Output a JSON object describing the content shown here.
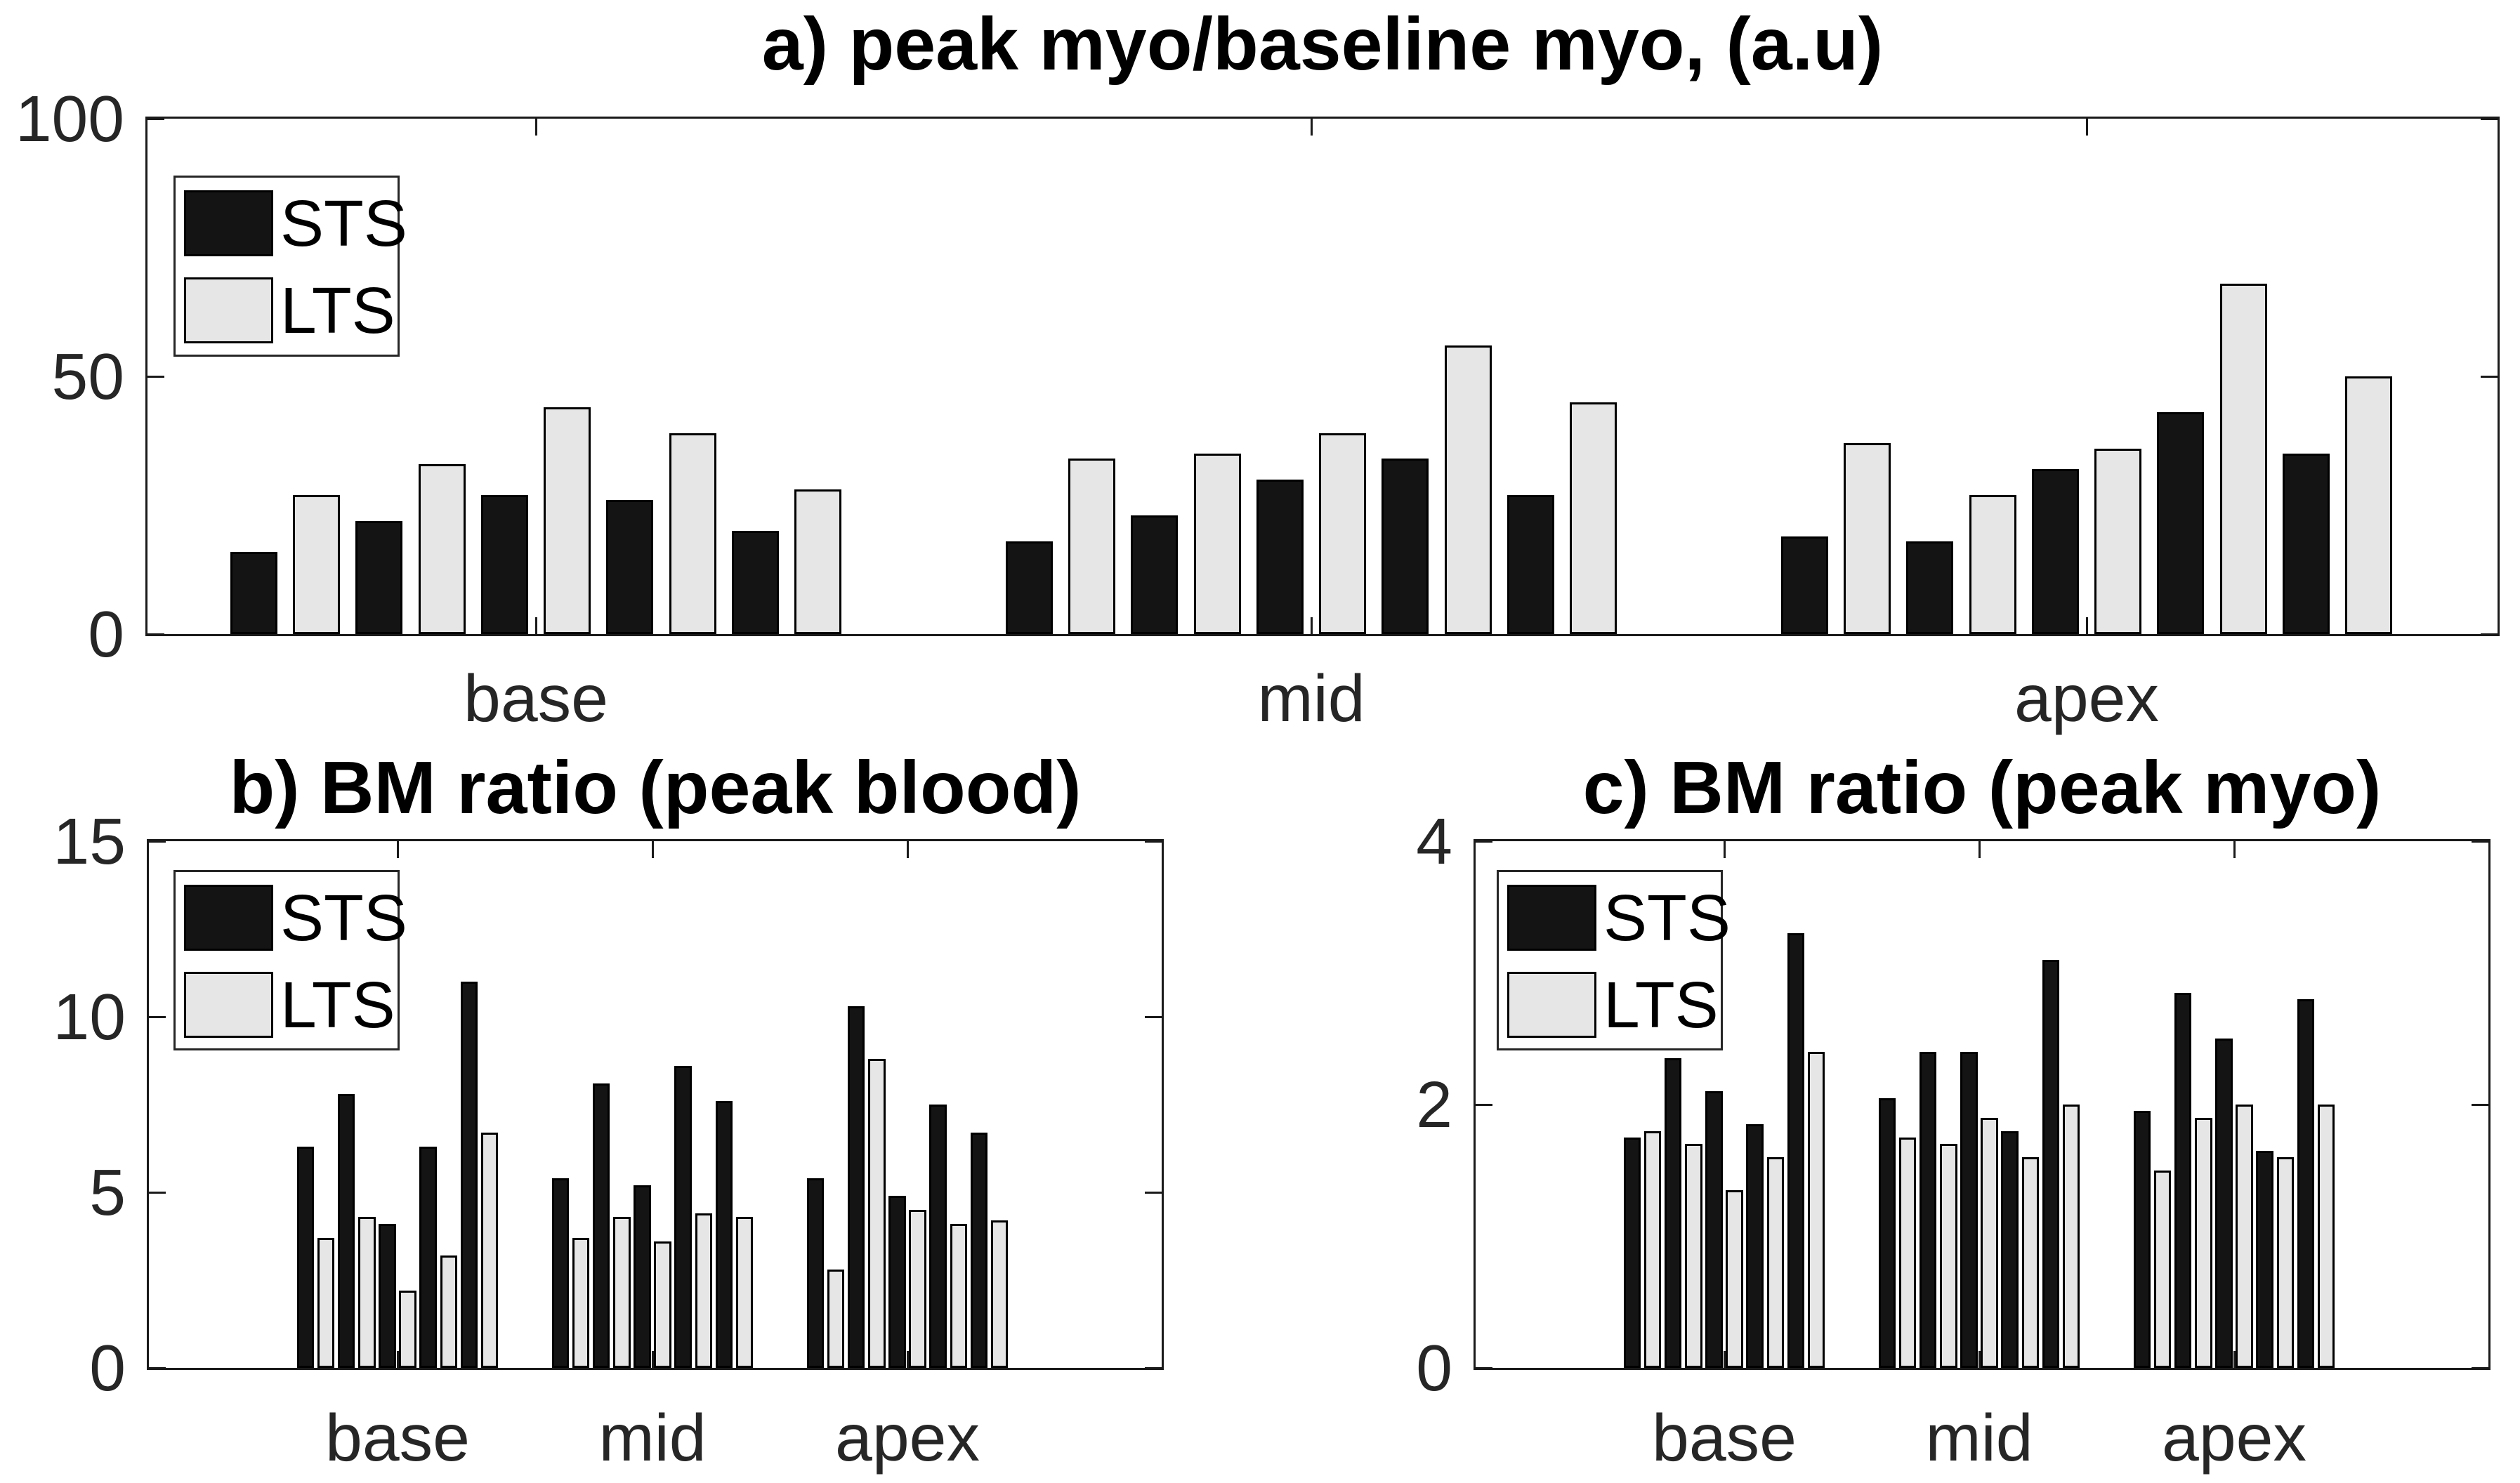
{
  "figure_background": "#ffffff",
  "axis_color": "#1a1a1a",
  "text_color": "#262626",
  "chart_data": [
    {
      "id": "a",
      "type": "bar",
      "title": "a)  peak myo/baseline myo, (a.u)",
      "xlabel": "",
      "ylabel": "",
      "categories": [
        "base",
        "mid",
        "apex"
      ],
      "legend": [
        "STS",
        "LTS"
      ],
      "legend_position": "northwest",
      "ylim": [
        0,
        100
      ],
      "yticks": [
        0,
        50,
        100
      ],
      "grid": false,
      "bars_per_series_per_category": 5,
      "series": [
        {
          "name": "STS",
          "color": "#141414",
          "values": {
            "base": [
              16,
              22,
              27,
              26,
              20
            ],
            "mid": [
              18,
              23,
              30,
              34,
              27
            ],
            "apex": [
              19,
              18,
              32,
              43,
              35
            ]
          }
        },
        {
          "name": "LTS",
          "color": "#e6e6e6",
          "values": {
            "base": [
              27,
              33,
              44,
              39,
              28
            ],
            "mid": [
              34,
              35,
              39,
              56,
              45
            ],
            "apex": [
              37,
              27,
              36,
              68,
              50
            ]
          }
        }
      ]
    },
    {
      "id": "b",
      "type": "bar",
      "title": "b)  BM ratio (peak blood)",
      "xlabel": "",
      "ylabel": "",
      "categories": [
        "base",
        "mid",
        "apex"
      ],
      "legend": [
        "STS",
        "LTS"
      ],
      "legend_position": "northwest",
      "ylim": [
        0,
        15
      ],
      "yticks": [
        0,
        5,
        10,
        15
      ],
      "grid": false,
      "bars_per_series_per_category": 5,
      "series": [
        {
          "name": "STS",
          "color": "#141414",
          "values": {
            "base": [
              6.3,
              7.8,
              4.1,
              6.3,
              11.0
            ],
            "mid": [
              5.4,
              8.1,
              5.2,
              8.6,
              7.6
            ],
            "apex": [
              5.4,
              10.3,
              4.9,
              7.5,
              6.7
            ]
          }
        },
        {
          "name": "LTS",
          "color": "#e6e6e6",
          "values": {
            "base": [
              3.7,
              4.3,
              2.2,
              3.2,
              6.7
            ],
            "mid": [
              3.7,
              4.3,
              3.6,
              4.4,
              4.3
            ],
            "apex": [
              2.8,
              8.8,
              4.5,
              4.1,
              4.2
            ]
          }
        }
      ]
    },
    {
      "id": "c",
      "type": "bar",
      "title": "c)  BM ratio (peak myo)",
      "xlabel": "",
      "ylabel": "",
      "categories": [
        "base",
        "mid",
        "apex"
      ],
      "legend": [
        "STS",
        "LTS"
      ],
      "legend_position": "northwest",
      "ylim": [
        0,
        4
      ],
      "yticks": [
        0,
        2,
        4
      ],
      "grid": false,
      "bars_per_series_per_category": 5,
      "series": [
        {
          "name": "STS",
          "color": "#141414",
          "values": {
            "base": [
              1.75,
              2.35,
              2.1,
              1.85,
              3.3
            ],
            "mid": [
              2.05,
              2.4,
              2.4,
              1.8,
              3.1
            ],
            "apex": [
              1.95,
              2.85,
              2.5,
              1.65,
              2.8
            ]
          }
        },
        {
          "name": "LTS",
          "color": "#e6e6e6",
          "values": {
            "base": [
              1.8,
              1.7,
              1.35,
              1.6,
              2.4
            ],
            "mid": [
              1.75,
              1.7,
              1.9,
              1.6,
              2.0
            ],
            "apex": [
              1.5,
              1.9,
              2.0,
              1.6,
              2.0
            ]
          }
        }
      ]
    }
  ]
}
